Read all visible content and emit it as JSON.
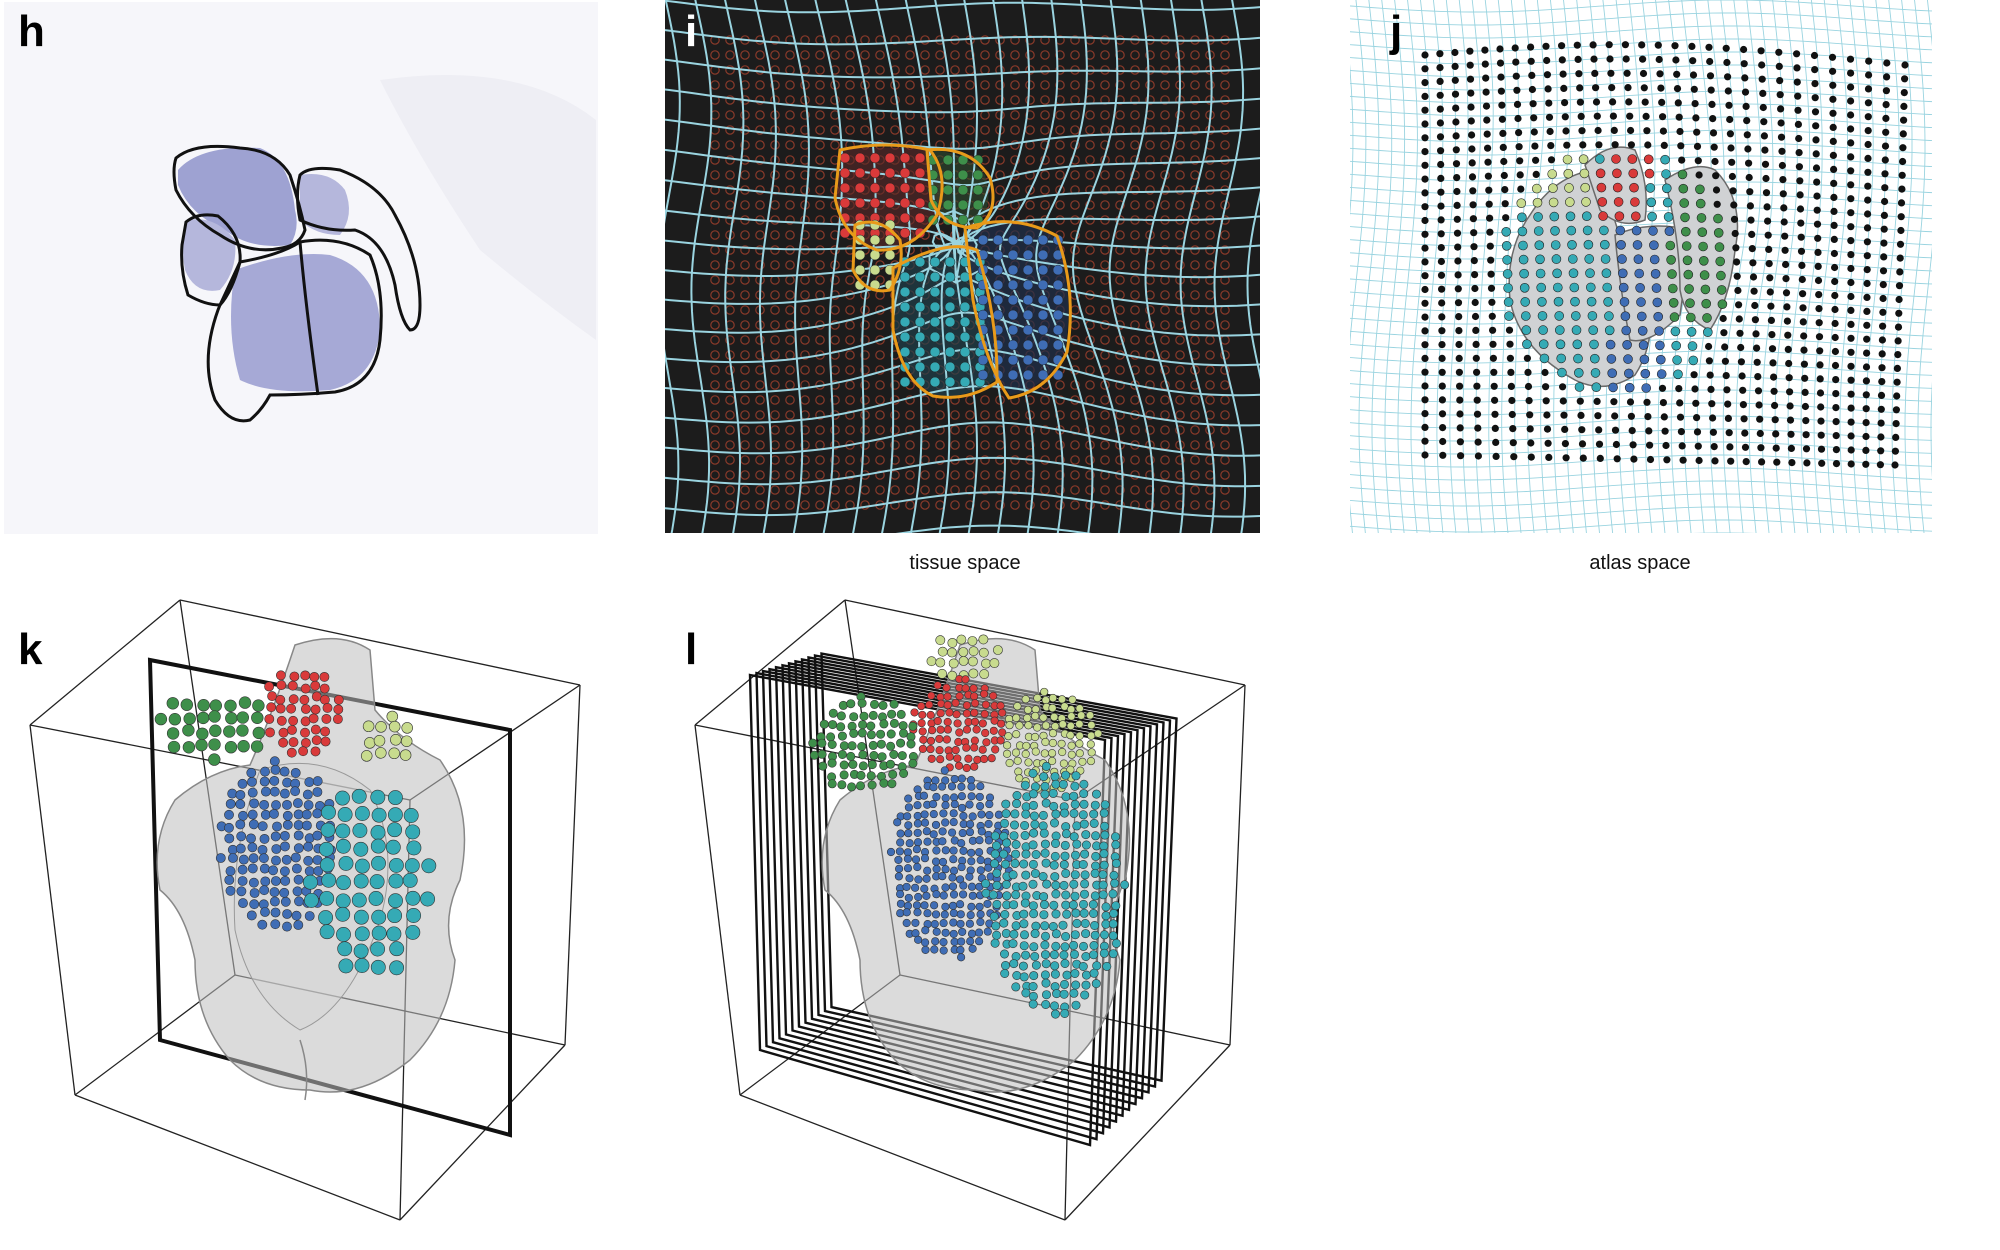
{
  "panels": {
    "h": {
      "label": "h"
    },
    "i": {
      "label": "i",
      "caption": "tissue space"
    },
    "j": {
      "label": "j",
      "caption": "atlas space"
    },
    "k": {
      "label": "k"
    },
    "l": {
      "label": "l"
    }
  },
  "colors": {
    "ra": "#d93a3a",
    "la": "#3e8f4a",
    "lv": "#3f6db5",
    "rv": "#35aab5",
    "aorta": "#c8db8e",
    "grid": "#9ad4e0",
    "tissue_outline": "#e89a1a",
    "spot_empty": "#8a3a2a",
    "stain": "#8c8fc9"
  }
}
